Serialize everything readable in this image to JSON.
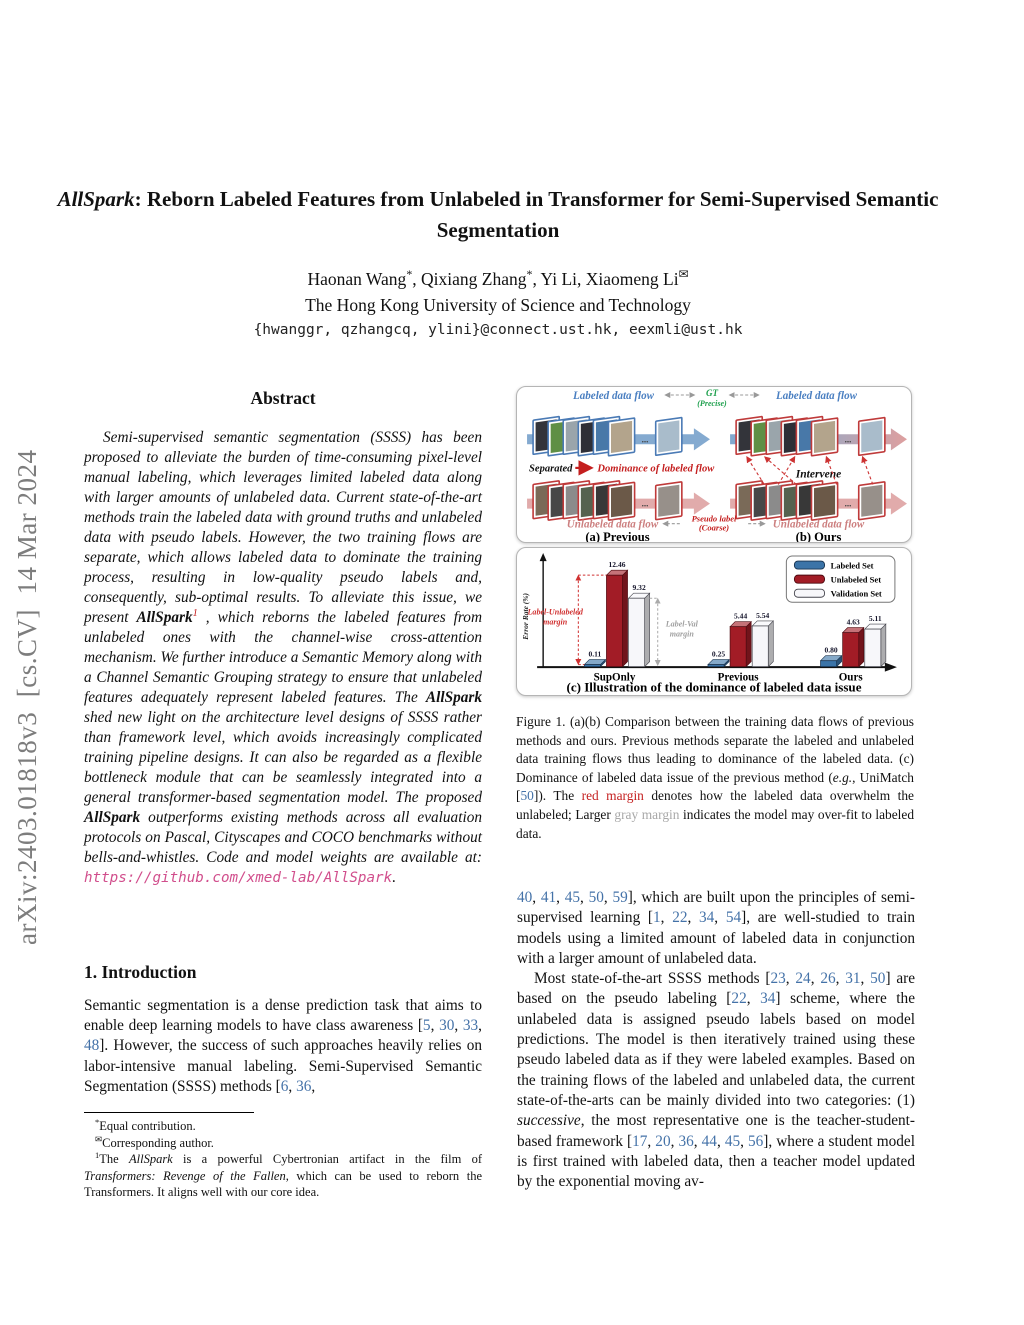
{
  "arxiv_watermark": "arXiv:2403.01818v3  [cs.CV]  14 Mar 2024",
  "colors": {
    "citation_link": "#4472a8",
    "url_link": "#d14e8c",
    "footnote_marker_red": "#c41f1f",
    "gray_margin_text": "#a8a8a8",
    "labeled_flow_blue": "#4a7fc1",
    "unlabeled_flow_pink": "#cc7f7f",
    "gt_green": "#1fa04e",
    "bar_blue": "#3b74a8",
    "bar_red": "#a21c26"
  },
  "title": {
    "segments": [
      {
        "t": "AllSpark",
        "s": "b i"
      },
      {
        "t": ": Reborn Labeled Features from Unlabeled in Transformer for Semi-Supervised Semantic Segmentation",
        "s": "b"
      }
    ]
  },
  "authors": {
    "segments": [
      {
        "t": "Haonan Wang",
        "s": ""
      },
      {
        "t": "*",
        "s": "sup"
      },
      {
        "t": ", Qixiang Zhang",
        "s": ""
      },
      {
        "t": "*",
        "s": "sup"
      },
      {
        "t": ", Yi Li, Xiaomeng Li",
        "s": ""
      },
      {
        "t": "✉",
        "s": "sup"
      }
    ]
  },
  "affiliation": "The Hong Kong University of Science and Technology",
  "emails": "{hwanggr, qzhangcq, ylini}@connect.ust.hk, eexmli@ust.hk",
  "abstract": {
    "heading": "Abstract",
    "segments": [
      {
        "t": "Semi-supervised semantic segmentation (SSSS) has been proposed to alleviate the burden of time-consuming pixel-level manual labeling, which leverages limited labeled data along with larger amounts of unlabeled data.  Current state-of-the-art methods train the labeled data with ground truths and unlabeled data with pseudo labels.  However, the two training flows are separate, which allows labeled data to dominate the training process, resulting in low-quality pseudo labels and, consequently, sub-optimal results.  To alleviate this issue, we present ",
        "s": ""
      },
      {
        "t": "AllSpark",
        "s": "b"
      },
      {
        "t": "1",
        "s": "sup red"
      },
      {
        "t": " , which reborns the labeled features from unlabeled ones with the channel-wise cross-attention mechanism.  We further introduce a Semantic Memory along with a Channel Semantic Grouping strategy to ensure that unlabeled features adequately represent labeled features.  The ",
        "s": ""
      },
      {
        "t": "AllSpark",
        "s": "b"
      },
      {
        "t": " shed new light on the architecture level designs of SSSS rather than framework level, which avoids increasingly complicated training pipeline designs.  It can also be regarded as a flexible bottleneck module that can be seamlessly integrated into a general transformer-based segmentation model.  The proposed ",
        "s": ""
      },
      {
        "t": "AllSpark",
        "s": "b"
      },
      {
        "t": " outperforms existing methods across all evaluation protocols on Pascal, Cityscapes and COCO benchmarks without bells-and-whistles.  Code and model weights are available at: ",
        "s": ""
      },
      {
        "t": "https://github.com/xmed-lab/AllSpark",
        "s": "pink"
      },
      {
        "t": ".",
        "s": ""
      }
    ]
  },
  "introduction": {
    "heading": "1. Introduction",
    "paragraph": [
      {
        "t": "Semantic segmentation is a dense prediction task that aims to enable deep learning models to have class awareness [",
        "s": ""
      },
      {
        "t": "5",
        "s": "cite"
      },
      {
        "t": ", ",
        "s": ""
      },
      {
        "t": "30",
        "s": "cite"
      },
      {
        "t": ", ",
        "s": ""
      },
      {
        "t": "33",
        "s": "cite"
      },
      {
        "t": ", ",
        "s": ""
      },
      {
        "t": "48",
        "s": "cite"
      },
      {
        "t": "].  However, the success of such approaches heavily relies on labor-intensive manual labeling.  Semi-Supervised Semantic Segmentation (SSSS) methods [",
        "s": ""
      },
      {
        "t": "6",
        "s": "cite"
      },
      {
        "t": ", ",
        "s": ""
      },
      {
        "t": "36",
        "s": "cite"
      },
      {
        "t": ",",
        "s": ""
      }
    ]
  },
  "right_column": {
    "paragraph1": [
      {
        "t": "40",
        "s": "cite"
      },
      {
        "t": ", ",
        "s": ""
      },
      {
        "t": "41",
        "s": "cite"
      },
      {
        "t": ", ",
        "s": ""
      },
      {
        "t": "45",
        "s": "cite"
      },
      {
        "t": ", ",
        "s": ""
      },
      {
        "t": "50",
        "s": "cite"
      },
      {
        "t": ", ",
        "s": ""
      },
      {
        "t": "59",
        "s": "cite"
      },
      {
        "t": "], which are built upon the principles of semi-supervised learning [",
        "s": ""
      },
      {
        "t": "1",
        "s": "cite"
      },
      {
        "t": ", ",
        "s": ""
      },
      {
        "t": "22",
        "s": "cite"
      },
      {
        "t": ", ",
        "s": ""
      },
      {
        "t": "34",
        "s": "cite"
      },
      {
        "t": ", ",
        "s": ""
      },
      {
        "t": "54",
        "s": "cite"
      },
      {
        "t": "], are well-studied to train models using a limited amount of labeled data in conjunction with a larger amount of unlabeled data.",
        "s": ""
      }
    ],
    "paragraph2": [
      {
        "t": "Most state-of-the-art SSSS methods [",
        "s": ""
      },
      {
        "t": "23",
        "s": "cite"
      },
      {
        "t": ", ",
        "s": ""
      },
      {
        "t": "24",
        "s": "cite"
      },
      {
        "t": ", ",
        "s": ""
      },
      {
        "t": "26",
        "s": "cite"
      },
      {
        "t": ", ",
        "s": ""
      },
      {
        "t": "31",
        "s": "cite"
      },
      {
        "t": ", ",
        "s": ""
      },
      {
        "t": "50",
        "s": "cite"
      },
      {
        "t": "] are based on the pseudo labeling [",
        "s": ""
      },
      {
        "t": "22",
        "s": "cite"
      },
      {
        "t": ", ",
        "s": ""
      },
      {
        "t": "34",
        "s": "cite"
      },
      {
        "t": "] scheme, where the unlabeled data is assigned pseudo labels based on model predictions.  The model is then iteratively trained using these pseudo labeled data as if they were labeled examples. Based on the training flows of the labeled and unlabeled data, the current state-of-the-arts can be mainly divided into two categories: (1) ",
        "s": ""
      },
      {
        "t": "successive",
        "s": "i"
      },
      {
        "t": ", the most representative one is the teacher-student-based framework [",
        "s": ""
      },
      {
        "t": "17",
        "s": "cite"
      },
      {
        "t": ", ",
        "s": ""
      },
      {
        "t": "20",
        "s": "cite"
      },
      {
        "t": ", ",
        "s": ""
      },
      {
        "t": "36",
        "s": "cite"
      },
      {
        "t": ", ",
        "s": ""
      },
      {
        "t": "44",
        "s": "cite"
      },
      {
        "t": ", ",
        "s": ""
      },
      {
        "t": "45",
        "s": "cite"
      },
      {
        "t": ", ",
        "s": ""
      },
      {
        "t": "56",
        "s": "cite"
      },
      {
        "t": "], where a student model is first trained with labeled data, then a teacher model updated by the exponential moving av-",
        "s": ""
      }
    ]
  },
  "footnotes": [
    [
      {
        "t": "*",
        "s": "sup"
      },
      {
        "t": "Equal contribution.",
        "s": ""
      }
    ],
    [
      {
        "t": "✉",
        "s": "sup"
      },
      {
        "t": "Corresponding author.",
        "s": ""
      }
    ],
    [
      {
        "t": "1",
        "s": "sup"
      },
      {
        "t": "The ",
        "s": ""
      },
      {
        "t": "AllSpark",
        "s": "i"
      },
      {
        "t": " is a powerful Cybertronian artifact in the film of ",
        "s": ""
      },
      {
        "t": "Transformers: Revenge of the Fallen",
        "s": "i"
      },
      {
        "t": ", which can be used to reborn the Transformers. It aligns well with our core idea.",
        "s": ""
      }
    ]
  ],
  "figure1": {
    "panel_ab": {
      "labeled_flow": "Labeled data flow",
      "gt": "GT",
      "gt_precise": "(Precise)",
      "separated": "Separated",
      "dominance": "Dominance of labeled flow",
      "intervene": "Intervene",
      "unlabeled_flow": "Unlabeled data flow",
      "pseudo_label": "Pseudo label",
      "pseudo_coarse": "(Coarse)",
      "caption_a": "(a) Previous",
      "caption_b": "(b) Ours",
      "dots": "..."
    },
    "tiles": {
      "labeled_colors": [
        "#33343a",
        "#5f8f45",
        "#9aa5ab",
        "#2e2e36",
        "#4878a8",
        "#b3a48c",
        "#a9bccb"
      ],
      "unlabeled_colors": [
        "#7a6a58",
        "#474747",
        "#8b8b8b",
        "#55624f",
        "#383838",
        "#6b5948",
        "#97908a"
      ],
      "labeled_border": "#4a7ab5",
      "unlabeled_border": "#bf3a3a",
      "intervened_border": "#bf3a3a"
    },
    "caption": [
      {
        "t": "Figure 1.  (a)(b) Comparison between the training data flows of previous methods and ours. Previous methods separate the labeled and unlabeled data training flows thus leading to dominance of the labeled data. (c) Dominance of labeled data issue of the previous method (",
        "s": ""
      },
      {
        "t": "e.g.",
        "s": "i"
      },
      {
        "t": ", UniMatch [",
        "s": ""
      },
      {
        "t": "50",
        "s": "cite"
      },
      {
        "t": "]). The ",
        "s": ""
      },
      {
        "t": "red margin",
        "s": "red"
      },
      {
        "t": " denotes how the labeled data overwhelm the unlabeled; Larger ",
        "s": ""
      },
      {
        "t": "gray margin",
        "s": "gray"
      },
      {
        "t": " indicates the model may over-fit to labeled data.",
        "s": ""
      }
    ]
  },
  "chart_data": {
    "type": "bar",
    "title": "(c) Illustration of the dominance of labeled data issue",
    "ylabel": "Error Rate (%)",
    "categories": [
      "SupOnly",
      "Previous",
      "Ours"
    ],
    "series": [
      {
        "name": "Labeled Set",
        "color": "#3b74a8",
        "stroke": "#17324e",
        "values": [
          0.11,
          0.25,
          0.8
        ]
      },
      {
        "name": "Unlabeled Set",
        "color": "#a21c26",
        "stroke": "#4d0a10",
        "values": [
          12.46,
          5.44,
          4.63
        ]
      },
      {
        "name": "Validation Set",
        "color": "#f7f7fa",
        "stroke": "#47474f",
        "values": [
          9.32,
          5.54,
          5.11
        ]
      }
    ],
    "annotations": {
      "red_margin": [
        "Label-Unlabeled",
        "margin"
      ],
      "gray_margin": [
        "Label-Val",
        "margin"
      ]
    },
    "legend_position": "top-right",
    "ylim": [
      0,
      14
    ],
    "grid": false
  }
}
